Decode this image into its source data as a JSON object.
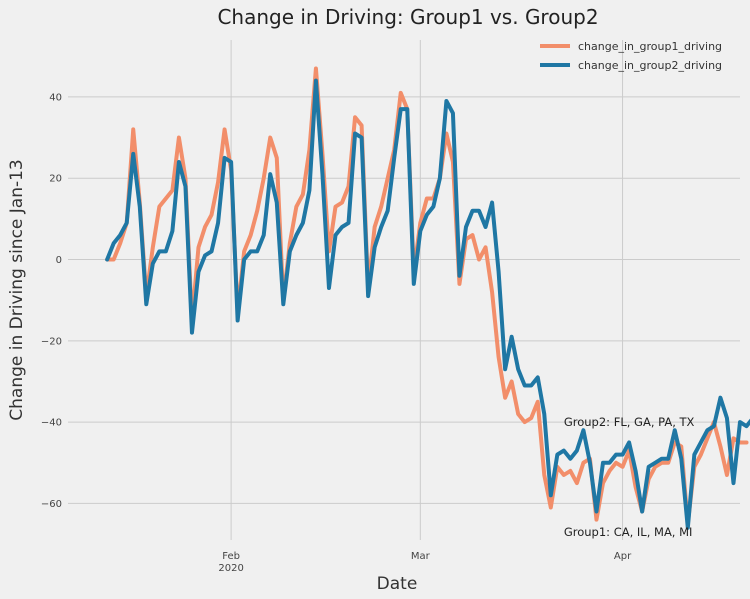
{
  "chart_data": {
    "type": "line",
    "title": "Change in Driving: Group1 vs. Group2",
    "xlabel": "Date",
    "ylabel": "Change in Driving since Jan-13",
    "x_start": "2020-01-13",
    "x_end": "2020-04-15",
    "xlim": [
      "2020-01-07",
      "2020-04-19"
    ],
    "ylim": [
      -69,
      54
    ],
    "yticks": [
      -60,
      -40,
      -20,
      0,
      20,
      40
    ],
    "xticks": [
      {
        "date": "2020-02-01",
        "label": "Feb",
        "sublabel": "2020"
      },
      {
        "date": "2020-03-01",
        "label": "Mar",
        "sublabel": ""
      },
      {
        "date": "2020-04-01",
        "label": "Apr",
        "sublabel": ""
      }
    ],
    "grid": true,
    "legend_position": "top-right",
    "series": [
      {
        "name": "change_in_group1_driving",
        "color": "#f28e6a",
        "values": [
          0,
          0,
          4,
          9,
          32,
          14,
          -9,
          3,
          13,
          15,
          17,
          30,
          20,
          -15,
          3,
          8,
          11,
          19,
          32,
          22,
          -13,
          2,
          6,
          12,
          20,
          30,
          25,
          -10,
          4,
          13,
          16,
          27,
          47,
          26,
          2,
          13,
          14,
          18,
          35,
          33,
          -7,
          8,
          13,
          20,
          27,
          41,
          37,
          -3,
          9,
          15,
          15,
          20,
          31,
          24,
          -6,
          5,
          6,
          0,
          3,
          -8,
          -24,
          -34,
          -30,
          -38,
          -40,
          -39,
          -35,
          -53,
          -61,
          -51,
          -53,
          -52,
          -55,
          -50,
          -49,
          -64,
          -55,
          -52,
          -50,
          -51,
          -47,
          -56,
          -62,
          -54,
          -51,
          -50,
          -50,
          -45,
          -46,
          -65,
          -51,
          -48,
          -44,
          -40,
          -46,
          -53,
          -44,
          -45,
          -45
        ]
      },
      {
        "name": "change_in_group2_driving",
        "color": "#1f77a4",
        "values": [
          0,
          4,
          6,
          9,
          26,
          13,
          -11,
          -1,
          2,
          2,
          7,
          24,
          18,
          -18,
          -3,
          1,
          2,
          9,
          25,
          24,
          -15,
          0,
          2,
          2,
          6,
          21,
          14,
          -11,
          2,
          6,
          9,
          17,
          44,
          21,
          -7,
          6,
          8,
          9,
          31,
          30,
          -9,
          3,
          8,
          12,
          25,
          37,
          37,
          -6,
          7,
          11,
          13,
          20,
          39,
          36,
          -4,
          8,
          12,
          12,
          8,
          14,
          -3,
          -27,
          -19,
          -27,
          -31,
          -31,
          -29,
          -38,
          -58,
          -48,
          -47,
          -49,
          -47,
          -42,
          -50,
          -62,
          -50,
          -50,
          -48,
          -48,
          -45,
          -52,
          -62,
          -51,
          -50,
          -49,
          -49,
          -42,
          -49,
          -66,
          -48,
          -45,
          -42,
          -41,
          -34,
          -39,
          -55,
          -40,
          -41,
          -39
        ]
      }
    ],
    "annotations": [
      {
        "text": "Group2: FL, GA, PA, TX",
        "date": "2020-03-23",
        "y": -40
      },
      {
        "text": "Group1: CA, IL, MA, MI",
        "date": "2020-03-23",
        "y": -67
      }
    ]
  }
}
